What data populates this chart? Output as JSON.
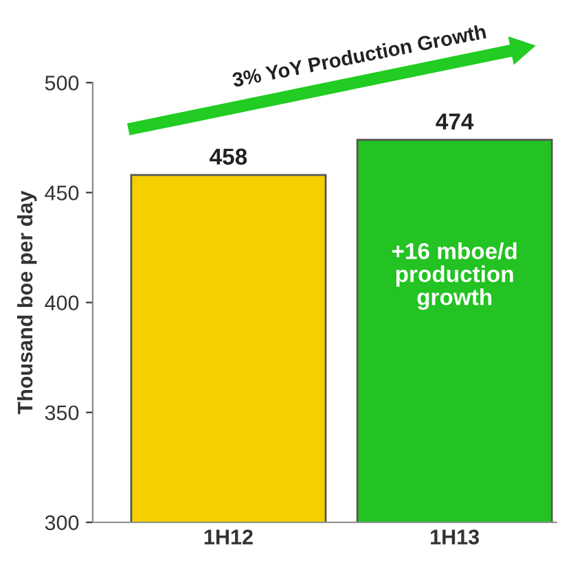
{
  "chart_data": {
    "type": "bar",
    "categories": [
      "1H12",
      "1H13"
    ],
    "values": [
      458,
      474
    ],
    "colors": [
      "#f5cf00",
      "#22c322"
    ],
    "ylabel": "Thousand boe per day",
    "ylim": [
      300,
      500
    ],
    "yticks": [
      300,
      350,
      400,
      450,
      500
    ],
    "grid": false,
    "data_labels": true,
    "annotations": [
      "3% YoY Production Growth",
      "+16 mboe/d\nproduction\ngrowth"
    ]
  }
}
